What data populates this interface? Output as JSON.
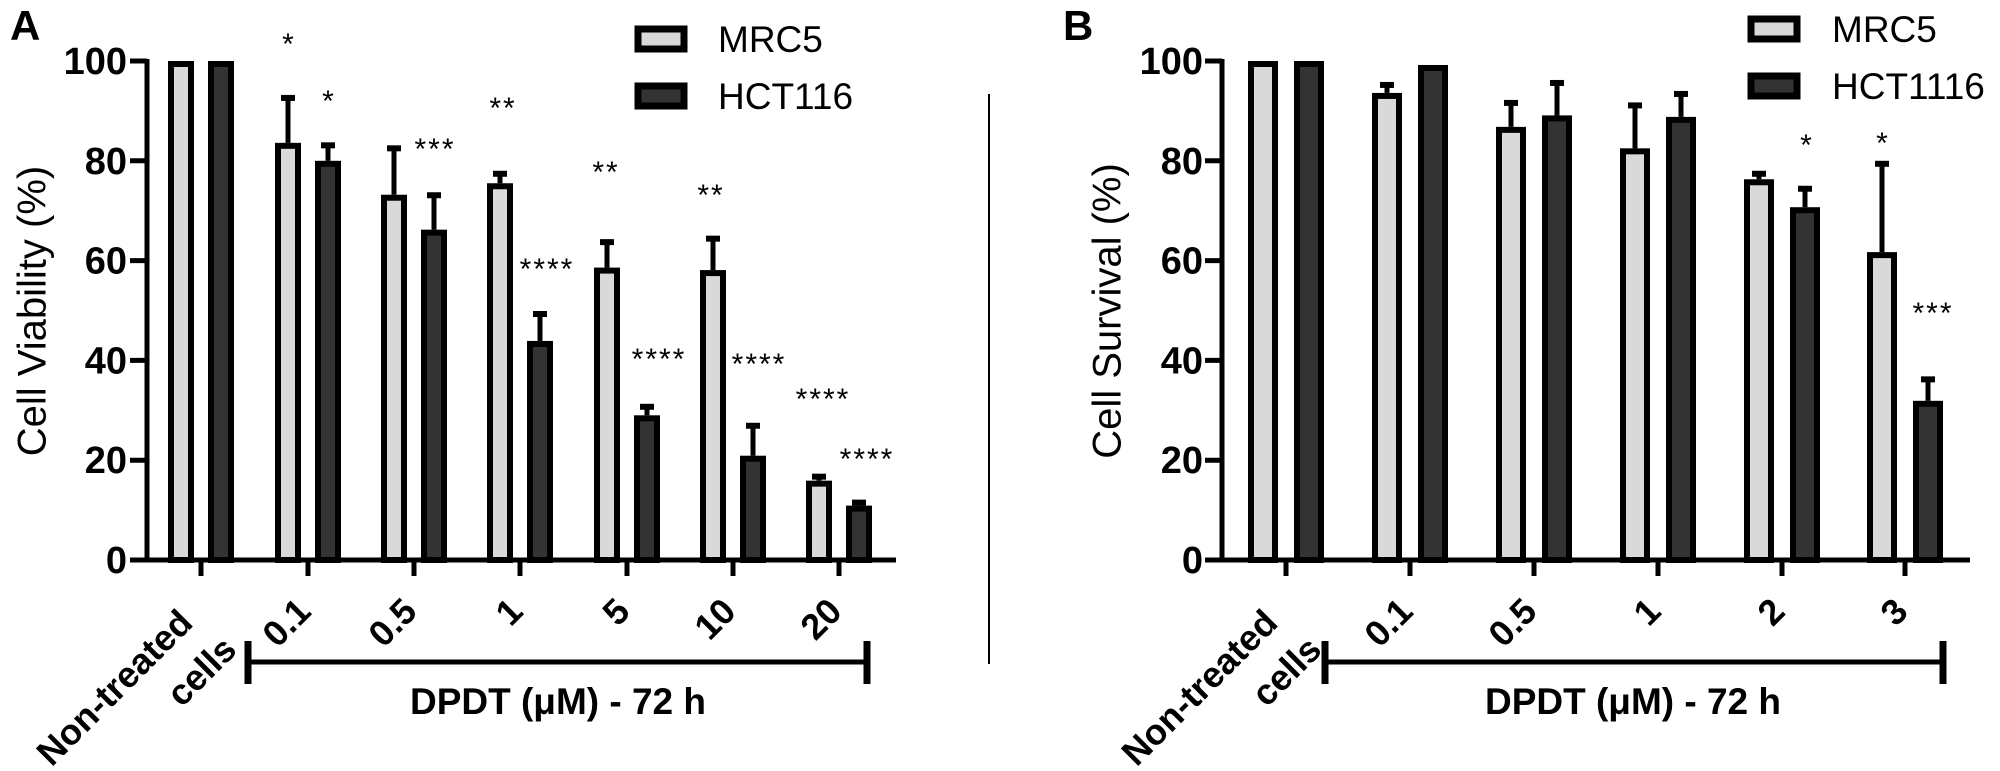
{
  "chart_data": [
    {
      "type": "bar",
      "panel_label": "A",
      "ylabel": "Cell Viability (%)",
      "xlabel": "DPDT (μM) - 72 h",
      "ylim": [
        0,
        100
      ],
      "yticks": [
        "0",
        "20",
        "40",
        "60",
        "80",
        "100"
      ],
      "grid": false,
      "legend_position": "top-right",
      "categories": [
        "Non-treated cells",
        "0.1",
        "0.5",
        "1",
        "5",
        "10",
        "20"
      ],
      "series": [
        {
          "name": "MRC5",
          "color": "#d9d9d9",
          "values": [
            100,
            83.6,
            73.2,
            75.5,
            58.6,
            58.1,
            15.9
          ],
          "error_upper": [
            100,
            93.0,
            82.9,
            77.8,
            64.1,
            64.8,
            17.1
          ],
          "significance": [
            "",
            "*",
            "",
            "**",
            "**",
            "**",
            "****"
          ]
        },
        {
          "name": "HCT116",
          "color": "#333333",
          "values": [
            100,
            80.0,
            66.2,
            43.9,
            29.0,
            20.9,
            10.9
          ],
          "error_upper": [
            100,
            83.5,
            73.5,
            49.7,
            31.1,
            27.3,
            11.9
          ],
          "significance": [
            "",
            "*",
            "***",
            "****",
            "****",
            "****",
            "****"
          ]
        }
      ]
    },
    {
      "type": "bar",
      "panel_label": "B",
      "ylabel": "Cell Survival (%)",
      "xlabel": "DPDT (μM) - 72 h",
      "ylim": [
        0,
        100
      ],
      "yticks": [
        "0",
        "20",
        "40",
        "60",
        "80",
        "100"
      ],
      "grid": false,
      "legend_position": "top-right",
      "categories": [
        "Non-treated cells",
        "0.1",
        "0.5",
        "1",
        "2",
        "3"
      ],
      "series": [
        {
          "name": "MRC5",
          "color": "#d9d9d9",
          "values": [
            100,
            93.6,
            86.8,
            82.5,
            76.3,
            61.7
          ],
          "error_upper": [
            100,
            95.6,
            92.0,
            91.5,
            77.8,
            79.8
          ],
          "significance": [
            "",
            "",
            "",
            "",
            "",
            "*"
          ]
        },
        {
          "name": "HCT1116",
          "color": "#333333",
          "values": [
            100,
            99.2,
            89.1,
            88.8,
            70.7,
            31.9
          ],
          "error_upper": [
            100,
            99.4,
            96.0,
            93.8,
            74.8,
            36.6
          ],
          "significance": [
            "",
            "",
            "",
            "",
            "*",
            "***"
          ]
        }
      ]
    }
  ]
}
